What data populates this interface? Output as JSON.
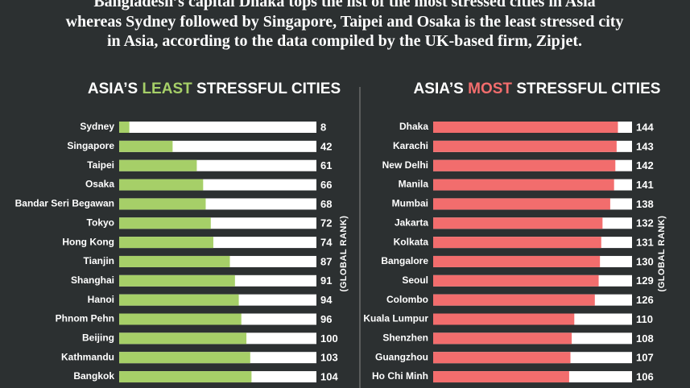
{
  "header": {
    "lines": [
      "Bangladesh’s capital Dhaka tops the list of the most stressed cities in Asia",
      "whereas Sydney followed by Singapore, Taipei and Osaka is the least stressed city",
      "in Asia, according to the data compiled by the UK-based  firm, Zipjet."
    ]
  },
  "chart_data": [
    {
      "type": "bar",
      "orientation": "horizontal",
      "title": [
        "ASIA’S",
        "LEAST",
        "STRESSFUL CITIES"
      ],
      "highlight_color": "#a6cf68",
      "x_label": "(GLOBAL RANK)",
      "categories": [
        "Sydney",
        "Singapore",
        "Taipei",
        "Osaka",
        "Bandar Seri Begawan",
        "Tokyo",
        "Hong Kong",
        "Tianjin",
        "Shanghai",
        "Hanoi",
        "Phnom Pehn",
        "Beijing",
        "Kathmandu",
        "Bangkok"
      ],
      "values": [
        8,
        42,
        61,
        66,
        68,
        72,
        74,
        87,
        91,
        94,
        96,
        100,
        103,
        104
      ],
      "color": "#a6cf68",
      "track_color": "#ffffff",
      "xlim": [
        0,
        155
      ]
    },
    {
      "type": "bar",
      "orientation": "horizontal",
      "title": [
        "ASIA’S",
        "MOST",
        "STRESSFUL CITIES"
      ],
      "highlight_color": "#f26d6d",
      "x_label": "(GLOBAL RANK)",
      "categories": [
        "Dhaka",
        "Karachi",
        "New Delhi",
        "Manila",
        "Mumbai",
        "Jakarta",
        "Kolkata",
        "Bangalore",
        "Seoul",
        "Colombo",
        "Kuala Lumpur",
        "Shenzhen",
        "Guangzhou",
        "Ho Chi Minh"
      ],
      "values": [
        144,
        143,
        142,
        141,
        138,
        132,
        131,
        130,
        129,
        126,
        110,
        108,
        107,
        106
      ],
      "color": "#f26d6d",
      "track_color": "#ffffff",
      "xlim": [
        0,
        155
      ]
    }
  ]
}
